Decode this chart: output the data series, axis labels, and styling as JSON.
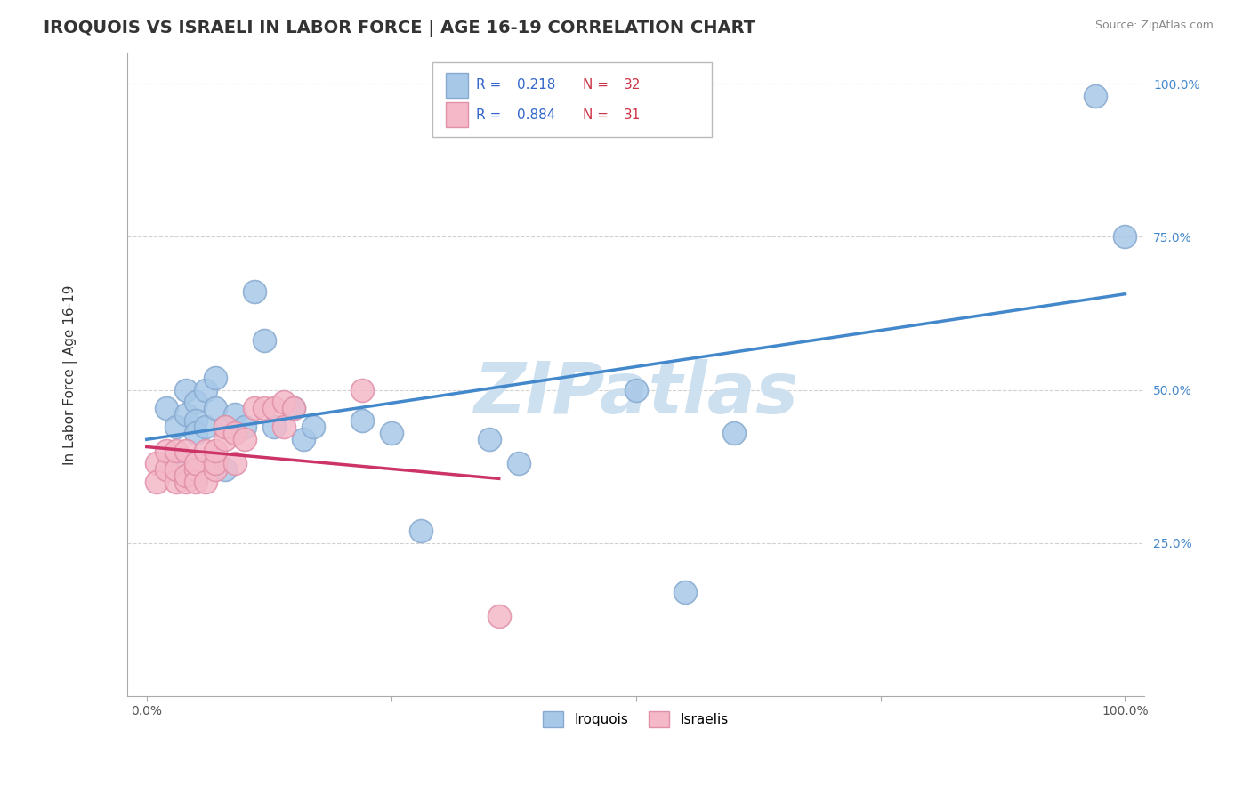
{
  "title": "IROQUOIS VS ISRAELI IN LABOR FORCE | AGE 16-19 CORRELATION CHART",
  "source_text": "Source: ZipAtlas.com",
  "ylabel": "In Labor Force | Age 16-19",
  "xlim": [
    -0.02,
    1.02
  ],
  "ylim": [
    0.0,
    1.05
  ],
  "xticks": [
    0.0,
    0.25,
    0.5,
    0.75,
    1.0
  ],
  "yticks": [
    0.25,
    0.5,
    0.75,
    1.0
  ],
  "xtick_labels": [
    "0.0%",
    "",
    "",
    "",
    "100.0%"
  ],
  "ytick_labels": [
    "25.0%",
    "50.0%",
    "75.0%",
    "100.0%"
  ],
  "background_color": "#ffffff",
  "grid_color": "#cccccc",
  "watermark_text": "ZIPatlas",
  "watermark_color": "#cce0f0",
  "iroquois_color": "#a8c8e8",
  "israeli_color": "#f4b8c8",
  "iroquois_edge": "#88aad0",
  "israeli_edge": "#e090a8",
  "r_iroquois": 0.218,
  "n_iroquois": 32,
  "r_israeli": 0.884,
  "n_israeli": 31,
  "line_iroquois_color": "#4488cc",
  "line_israeli_color": "#cc3366",
  "iroquois_x": [
    0.02,
    0.03,
    0.04,
    0.04,
    0.05,
    0.05,
    0.05,
    0.06,
    0.06,
    0.07,
    0.07,
    0.08,
    0.08,
    0.09,
    0.1,
    0.11,
    0.12,
    0.13,
    0.15,
    0.16,
    0.17,
    0.22,
    0.25,
    0.28,
    0.35,
    0.38,
    0.5,
    0.55,
    0.6,
    0.97,
    1.0,
    0.03
  ],
  "iroquois_y": [
    0.47,
    0.44,
    0.5,
    0.46,
    0.48,
    0.45,
    0.43,
    0.5,
    0.44,
    0.52,
    0.47,
    0.44,
    0.37,
    0.46,
    0.44,
    0.66,
    0.58,
    0.44,
    0.47,
    0.42,
    0.44,
    0.45,
    0.43,
    0.27,
    0.42,
    0.38,
    0.5,
    0.17,
    0.43,
    0.98,
    0.75,
    0.38
  ],
  "israeli_x": [
    0.01,
    0.01,
    0.02,
    0.02,
    0.03,
    0.03,
    0.03,
    0.04,
    0.04,
    0.04,
    0.05,
    0.05,
    0.05,
    0.06,
    0.06,
    0.07,
    0.07,
    0.07,
    0.08,
    0.08,
    0.09,
    0.09,
    0.1,
    0.11,
    0.12,
    0.13,
    0.14,
    0.14,
    0.15,
    0.22,
    0.36
  ],
  "israeli_y": [
    0.38,
    0.35,
    0.37,
    0.4,
    0.35,
    0.37,
    0.4,
    0.35,
    0.36,
    0.4,
    0.37,
    0.35,
    0.38,
    0.35,
    0.4,
    0.37,
    0.38,
    0.4,
    0.42,
    0.44,
    0.43,
    0.38,
    0.42,
    0.47,
    0.47,
    0.47,
    0.44,
    0.48,
    0.47,
    0.5,
    0.13
  ],
  "legend_iroquois_label": "Iroquois",
  "legend_israeli_label": "Israelis",
  "legend_r_color": "#3366cc",
  "legend_n_color": "#cc3344",
  "title_fontsize": 14,
  "axis_label_fontsize": 11,
  "tick_fontsize": 10,
  "tick_color_right": "#4488cc"
}
